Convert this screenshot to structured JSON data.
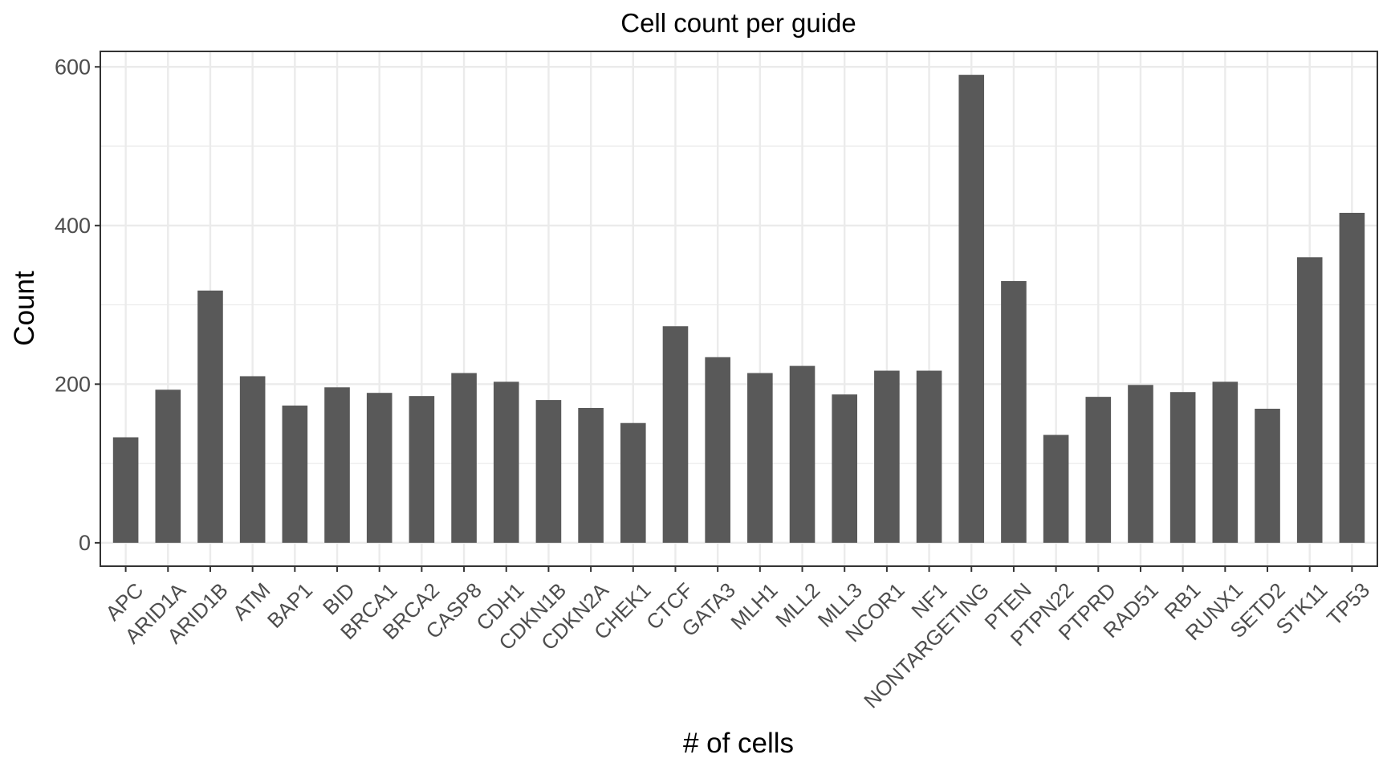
{
  "chart_data": {
    "type": "bar",
    "title": "Cell count per guide",
    "xlabel": "# of cells",
    "ylabel": "Count",
    "categories": [
      "APC",
      "ARID1A",
      "ARID1B",
      "ATM",
      "BAP1",
      "BID",
      "BRCA1",
      "BRCA2",
      "CASP8",
      "CDH1",
      "CDKN1B",
      "CDKN2A",
      "CHEK1",
      "CTCF",
      "GATA3",
      "MLH1",
      "MLL2",
      "MLL3",
      "NCOR1",
      "NF1",
      "NONTARGETING",
      "PTEN",
      "PTPN22",
      "PTPRD",
      "RAD51",
      "RB1",
      "RUNX1",
      "SETD2",
      "STK11",
      "TP53"
    ],
    "values": [
      133,
      193,
      318,
      210,
      173,
      196,
      189,
      185,
      214,
      203,
      180,
      170,
      151,
      273,
      234,
      214,
      223,
      187,
      217,
      217,
      590,
      330,
      136,
      184,
      199,
      190,
      203,
      169,
      360,
      416
    ],
    "yticks": [
      0,
      200,
      400,
      600
    ],
    "ytick_labels": [
      "0",
      "200",
      "400",
      "600"
    ],
    "ylim": [
      -29.5,
      619.5
    ],
    "grid": true,
    "legend": "none",
    "bar_color": "#595959",
    "grid_color": "#ebebeb",
    "border_color": "#333333"
  }
}
